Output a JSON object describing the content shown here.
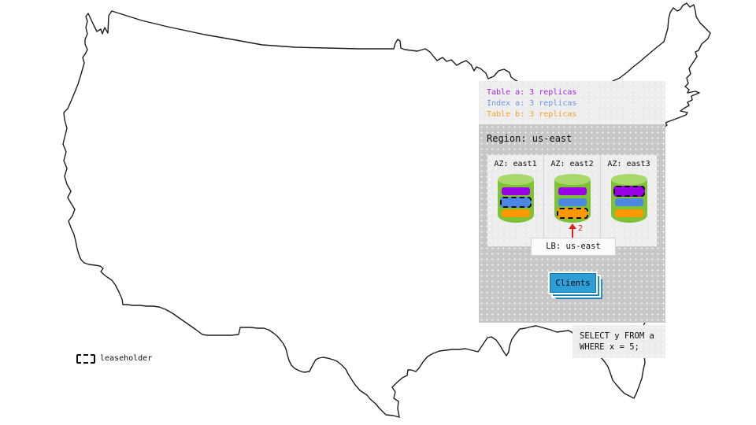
{
  "legend": {
    "items": [
      {
        "key": "table-a",
        "label": "Table a: 3 replicas",
        "color": "#9b2fd6"
      },
      {
        "key": "index-a",
        "label": "Index a: 3 replicas",
        "color": "#6d96e3"
      },
      {
        "key": "table-b",
        "label": "Table b: 3 replicas",
        "color": "#f6a12f"
      }
    ]
  },
  "colors": {
    "table-a": "#9900e6",
    "index-a": "#4d87e4",
    "table-b": "#ff9800",
    "clients": "#2e9fd6",
    "arrow": "#e02020",
    "cylinder": "#7ec235",
    "cylinder_top": "#a9d96b"
  },
  "region": {
    "title": "Region: us-east",
    "azs": [
      {
        "label": "AZ: east1",
        "bars": [
          {
            "key": "table-a",
            "leaseholder": false
          },
          {
            "key": "index-a",
            "leaseholder": true
          },
          {
            "key": "table-b",
            "leaseholder": false
          }
        ]
      },
      {
        "label": "AZ: east2",
        "bars": [
          {
            "key": "table-a",
            "leaseholder": false
          },
          {
            "key": "index-a",
            "leaseholder": false
          },
          {
            "key": "table-b",
            "leaseholder": true
          }
        ]
      },
      {
        "label": "AZ: east3",
        "bars": [
          {
            "key": "table-a",
            "leaseholder": true
          },
          {
            "key": "index-a",
            "leaseholder": false
          },
          {
            "key": "table-b",
            "leaseholder": false
          }
        ]
      }
    ],
    "load_balancer": {
      "label": "LB: us-east"
    },
    "clients": {
      "label": "Clients"
    },
    "arrow": {
      "label": "2"
    }
  },
  "query": {
    "lines": [
      "SELECT y FROM a",
      "WHERE x = 5;"
    ]
  },
  "map_key": {
    "leaseholder_label": "leaseholder"
  }
}
